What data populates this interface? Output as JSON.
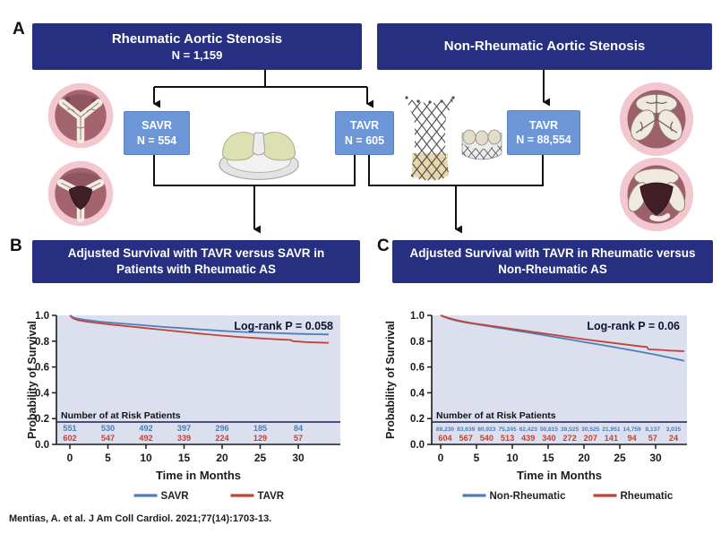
{
  "panels": {
    "a": "A",
    "b": "B",
    "c": "C"
  },
  "panelA": {
    "rheumatic": {
      "title": "Rheumatic Aortic Stenosis",
      "n": "N = 1,159"
    },
    "nonRheumatic": {
      "title": "Non-Rheumatic Aortic Stenosis"
    },
    "savr": {
      "name": "SAVR",
      "n": "N = 554"
    },
    "tavrRheumatic": {
      "name": "TAVR",
      "n": "N = 605"
    },
    "tavrNonRheumatic": {
      "name": "TAVR",
      "n": "N = 88,554"
    }
  },
  "panelB": {
    "title": "Adjusted Survival with TAVR versus SAVR in Patients with Rheumatic AS"
  },
  "panelC": {
    "title": "Adjusted Survival with TAVR in Rheumatic versus Non-Rheumatic AS"
  },
  "citation": "Mentias, A. et al. J Am Coll Cardiol. 2021;77(14):1703-13.",
  "colors": {
    "navy": "#272f80",
    "boxBlue": "#6c96d8",
    "plotBg": "#dbdfee",
    "blue": "#4f7db8",
    "red": "#bf4536",
    "axis": "#1c1c1c",
    "divider": "#1c2050"
  },
  "chart_data": [
    {
      "type": "line",
      "panel": "B",
      "title": "Adjusted Survival with TAVR versus SAVR in Patients with Rheumatic AS",
      "annotation": "Log-rank P = 0.058",
      "xlabel": "Time in Months",
      "ylabel": "Probability of Survival",
      "xlim": [
        0,
        34
      ],
      "ylim": [
        0.0,
        1.0
      ],
      "xticks": [
        "0",
        "5",
        "10",
        "15",
        "20",
        "25",
        "30"
      ],
      "xtick_values": [
        0,
        5,
        10,
        15,
        20,
        25,
        30
      ],
      "yticks": [
        "0.0",
        "0.2",
        "0.4",
        "0.6",
        "0.8",
        "1.0"
      ],
      "ytick_values": [
        0.0,
        0.2,
        0.4,
        0.6,
        0.8,
        1.0
      ],
      "grid": false,
      "legend_position": "bottom",
      "series": [
        {
          "name": "SAVR",
          "color": "#4f7db8",
          "x": [
            0,
            0.4,
            1,
            2,
            3,
            4,
            5,
            6.5,
            8,
            9.5,
            11,
            12.5,
            14,
            15.5,
            17,
            18.5,
            20,
            21.5,
            23,
            24.5,
            26,
            27.5,
            29,
            30.5,
            32,
            34
          ],
          "y": [
            1.0,
            0.985,
            0.975,
            0.965,
            0.958,
            0.951,
            0.945,
            0.938,
            0.931,
            0.924,
            0.917,
            0.91,
            0.904,
            0.898,
            0.892,
            0.886,
            0.88,
            0.875,
            0.871,
            0.868,
            0.865,
            0.862,
            0.859,
            0.856,
            0.854,
            0.852
          ]
        },
        {
          "name": "TAVR",
          "color": "#bf4536",
          "x": [
            0,
            0.4,
            1,
            2,
            3,
            4,
            5,
            6.5,
            8,
            9.5,
            11,
            12.5,
            14,
            15.5,
            17,
            18.5,
            20,
            21.5,
            23,
            24.5,
            26,
            27.5,
            29,
            29.3,
            31,
            34
          ],
          "y": [
            1.0,
            0.978,
            0.964,
            0.953,
            0.945,
            0.938,
            0.931,
            0.922,
            0.913,
            0.904,
            0.895,
            0.886,
            0.877,
            0.868,
            0.859,
            0.851,
            0.843,
            0.836,
            0.83,
            0.824,
            0.819,
            0.814,
            0.81,
            0.8,
            0.793,
            0.787
          ]
        }
      ],
      "at_risk": {
        "label": "Number of at Risk Patients",
        "rows": [
          {
            "name": "SAVR",
            "color": "#4f7db8",
            "values": [
              "551",
              "530",
              "492",
              "397",
              "296",
              "185",
              "84"
            ]
          },
          {
            "name": "TAVR",
            "color": "#bf4536",
            "values": [
              "602",
              "547",
              "492",
              "339",
              "224",
              "129",
              "57"
            ]
          }
        ]
      },
      "legend": [
        "SAVR",
        "TAVR"
      ]
    },
    {
      "type": "line",
      "panel": "C",
      "title": "Adjusted Survival with TAVR in Rheumatic versus Non-Rheumatic AS",
      "annotation": "Log-rank P = 0.06",
      "xlabel": "Time in Months",
      "ylabel": "Probability of Survival",
      "xlim": [
        0,
        34
      ],
      "ylim": [
        0.0,
        1.0
      ],
      "xticks": [
        "0",
        "5",
        "10",
        "15",
        "20",
        "25",
        "30"
      ],
      "xtick_values": [
        0,
        5,
        10,
        15,
        20,
        25,
        30
      ],
      "yticks": [
        "0.0",
        "0.2",
        "0.4",
        "0.6",
        "0.8",
        "1.0"
      ],
      "ytick_values": [
        0.0,
        0.2,
        0.4,
        0.6,
        0.8,
        1.0
      ],
      "grid": false,
      "legend_position": "bottom",
      "series": [
        {
          "name": "Non-Rheumatic",
          "color": "#4f7db8",
          "x": [
            0,
            0.5,
            1,
            2,
            3,
            4,
            5,
            6,
            7,
            8,
            9,
            10,
            12,
            14,
            16,
            18,
            20,
            22,
            24,
            26,
            28,
            30,
            32,
            34
          ],
          "y": [
            1.0,
            0.988,
            0.978,
            0.962,
            0.95,
            0.94,
            0.931,
            0.922,
            0.913,
            0.904,
            0.896,
            0.887,
            0.869,
            0.851,
            0.832,
            0.813,
            0.794,
            0.775,
            0.756,
            0.736,
            0.716,
            0.695,
            0.672,
            0.648
          ]
        },
        {
          "name": "Rheumatic",
          "color": "#bf4536",
          "x": [
            0,
            0.5,
            1,
            2,
            3,
            4,
            5,
            6,
            7,
            8,
            9,
            10,
            11,
            12,
            13,
            14,
            15,
            16,
            17,
            18,
            19,
            20,
            21,
            22,
            23,
            24,
            25,
            26,
            27,
            28,
            28.8,
            29,
            31,
            32,
            34
          ],
          "y": [
            1.0,
            0.99,
            0.981,
            0.966,
            0.954,
            0.944,
            0.935,
            0.927,
            0.919,
            0.911,
            0.903,
            0.895,
            0.887,
            0.879,
            0.871,
            0.863,
            0.855,
            0.847,
            0.839,
            0.831,
            0.823,
            0.815,
            0.808,
            0.801,
            0.794,
            0.787,
            0.78,
            0.773,
            0.766,
            0.759,
            0.755,
            0.737,
            0.732,
            0.727,
            0.722
          ]
        }
      ],
      "at_risk": {
        "label": "Number of at Risk Patients",
        "rows": [
          {
            "name": "Non-Rheumatic",
            "color": "#4f7db8",
            "values": [
              "88,230",
              "83,639",
              "80,923",
              "75,245",
              "62,423",
              "50,815",
              "39,525",
              "30,525",
              "21,951",
              "14,759",
              "8,137",
              "3,035"
            ]
          },
          {
            "name": "Rheumatic",
            "color": "#bf4536",
            "values": [
              "604",
              "567",
              "540",
              "513",
              "439",
              "340",
              "272",
              "207",
              "141",
              "94",
              "57",
              "24"
            ]
          }
        ]
      },
      "legend": [
        "Non-Rheumatic",
        "Rheumatic"
      ]
    }
  ]
}
